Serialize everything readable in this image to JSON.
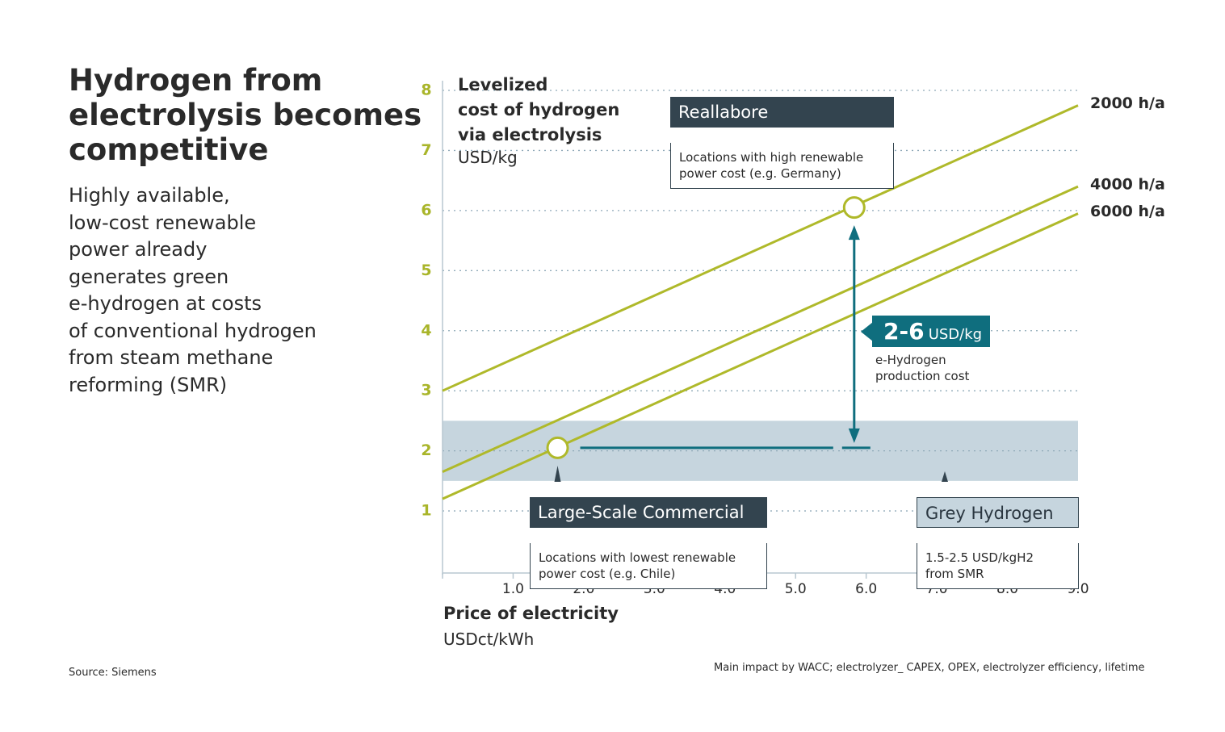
{
  "chart_data": {
    "type": "line",
    "title": "Hydrogen from\nelectrolysis becomes\ncompetitive",
    "subtitle": "Highly available,\nlow-cost renewable\npower already\ngenerates green\ne-hydrogen at costs\nof conventional hydrogen\nfrom steam methane\nreforming (SMR)",
    "y_label": "Levelized\ncost of hydrogen\nvia electrolysis",
    "y_unit": "USD/kg",
    "x_label": "Price of electricity",
    "x_unit": "USDct/kWh",
    "x": [
      0,
      9
    ],
    "series": [
      {
        "name": "2000 h/a",
        "color": "#afb92a",
        "values": [
          3.0,
          7.75
        ]
      },
      {
        "name": "4000 h/a",
        "color": "#afb92a",
        "values": [
          1.65,
          6.4
        ]
      },
      {
        "name": "6000 h/a",
        "color": "#afb92a",
        "values": [
          1.2,
          5.95
        ]
      }
    ],
    "xlim": [
      0,
      9
    ],
    "ylim": [
      0,
      8
    ],
    "xticks": [
      {
        "value": 1,
        "label": "1.0"
      },
      {
        "value": 2,
        "label": "2.0"
      },
      {
        "value": 3,
        "label": "3.0"
      },
      {
        "value": 4,
        "label": "4.0"
      },
      {
        "value": 5,
        "label": "5.0"
      },
      {
        "value": 6,
        "label": "6.0"
      },
      {
        "value": 7,
        "label": "7.0"
      },
      {
        "value": 8,
        "label": "8.0"
      },
      {
        "value": 9,
        "label": "9.0"
      }
    ],
    "yticks": [
      1,
      2,
      3,
      4,
      5,
      6,
      7,
      8
    ],
    "grid": true,
    "band": [
      1.5,
      2.5
    ],
    "highlights": [
      {
        "x": 1.63,
        "y": 2.05
      },
      {
        "x": 5.83,
        "y": 6.05
      }
    ],
    "annotations": {
      "reallabore": {
        "title": "Reallabore",
        "text": "Locations with high renewable\npower cost (e.g. Germany)"
      },
      "commercial": {
        "title": "Large-Scale Commercial",
        "text": "Locations with lowest renewable\npower cost (e.g. Chile)"
      },
      "grey": {
        "title": "Grey Hydrogen",
        "text": "1.5-2.5 USD/kgH2\nfrom SMR"
      },
      "range": {
        "value": "2-6",
        "unit": "USD/kg",
        "text": "e-Hydrogen\nproduction cost"
      }
    },
    "source": "Source: Siemens",
    "footnote": "Main impact by WACC; electrolyzer_ CAPEX, OPEX, electrolyzer efficiency, lifetime"
  }
}
